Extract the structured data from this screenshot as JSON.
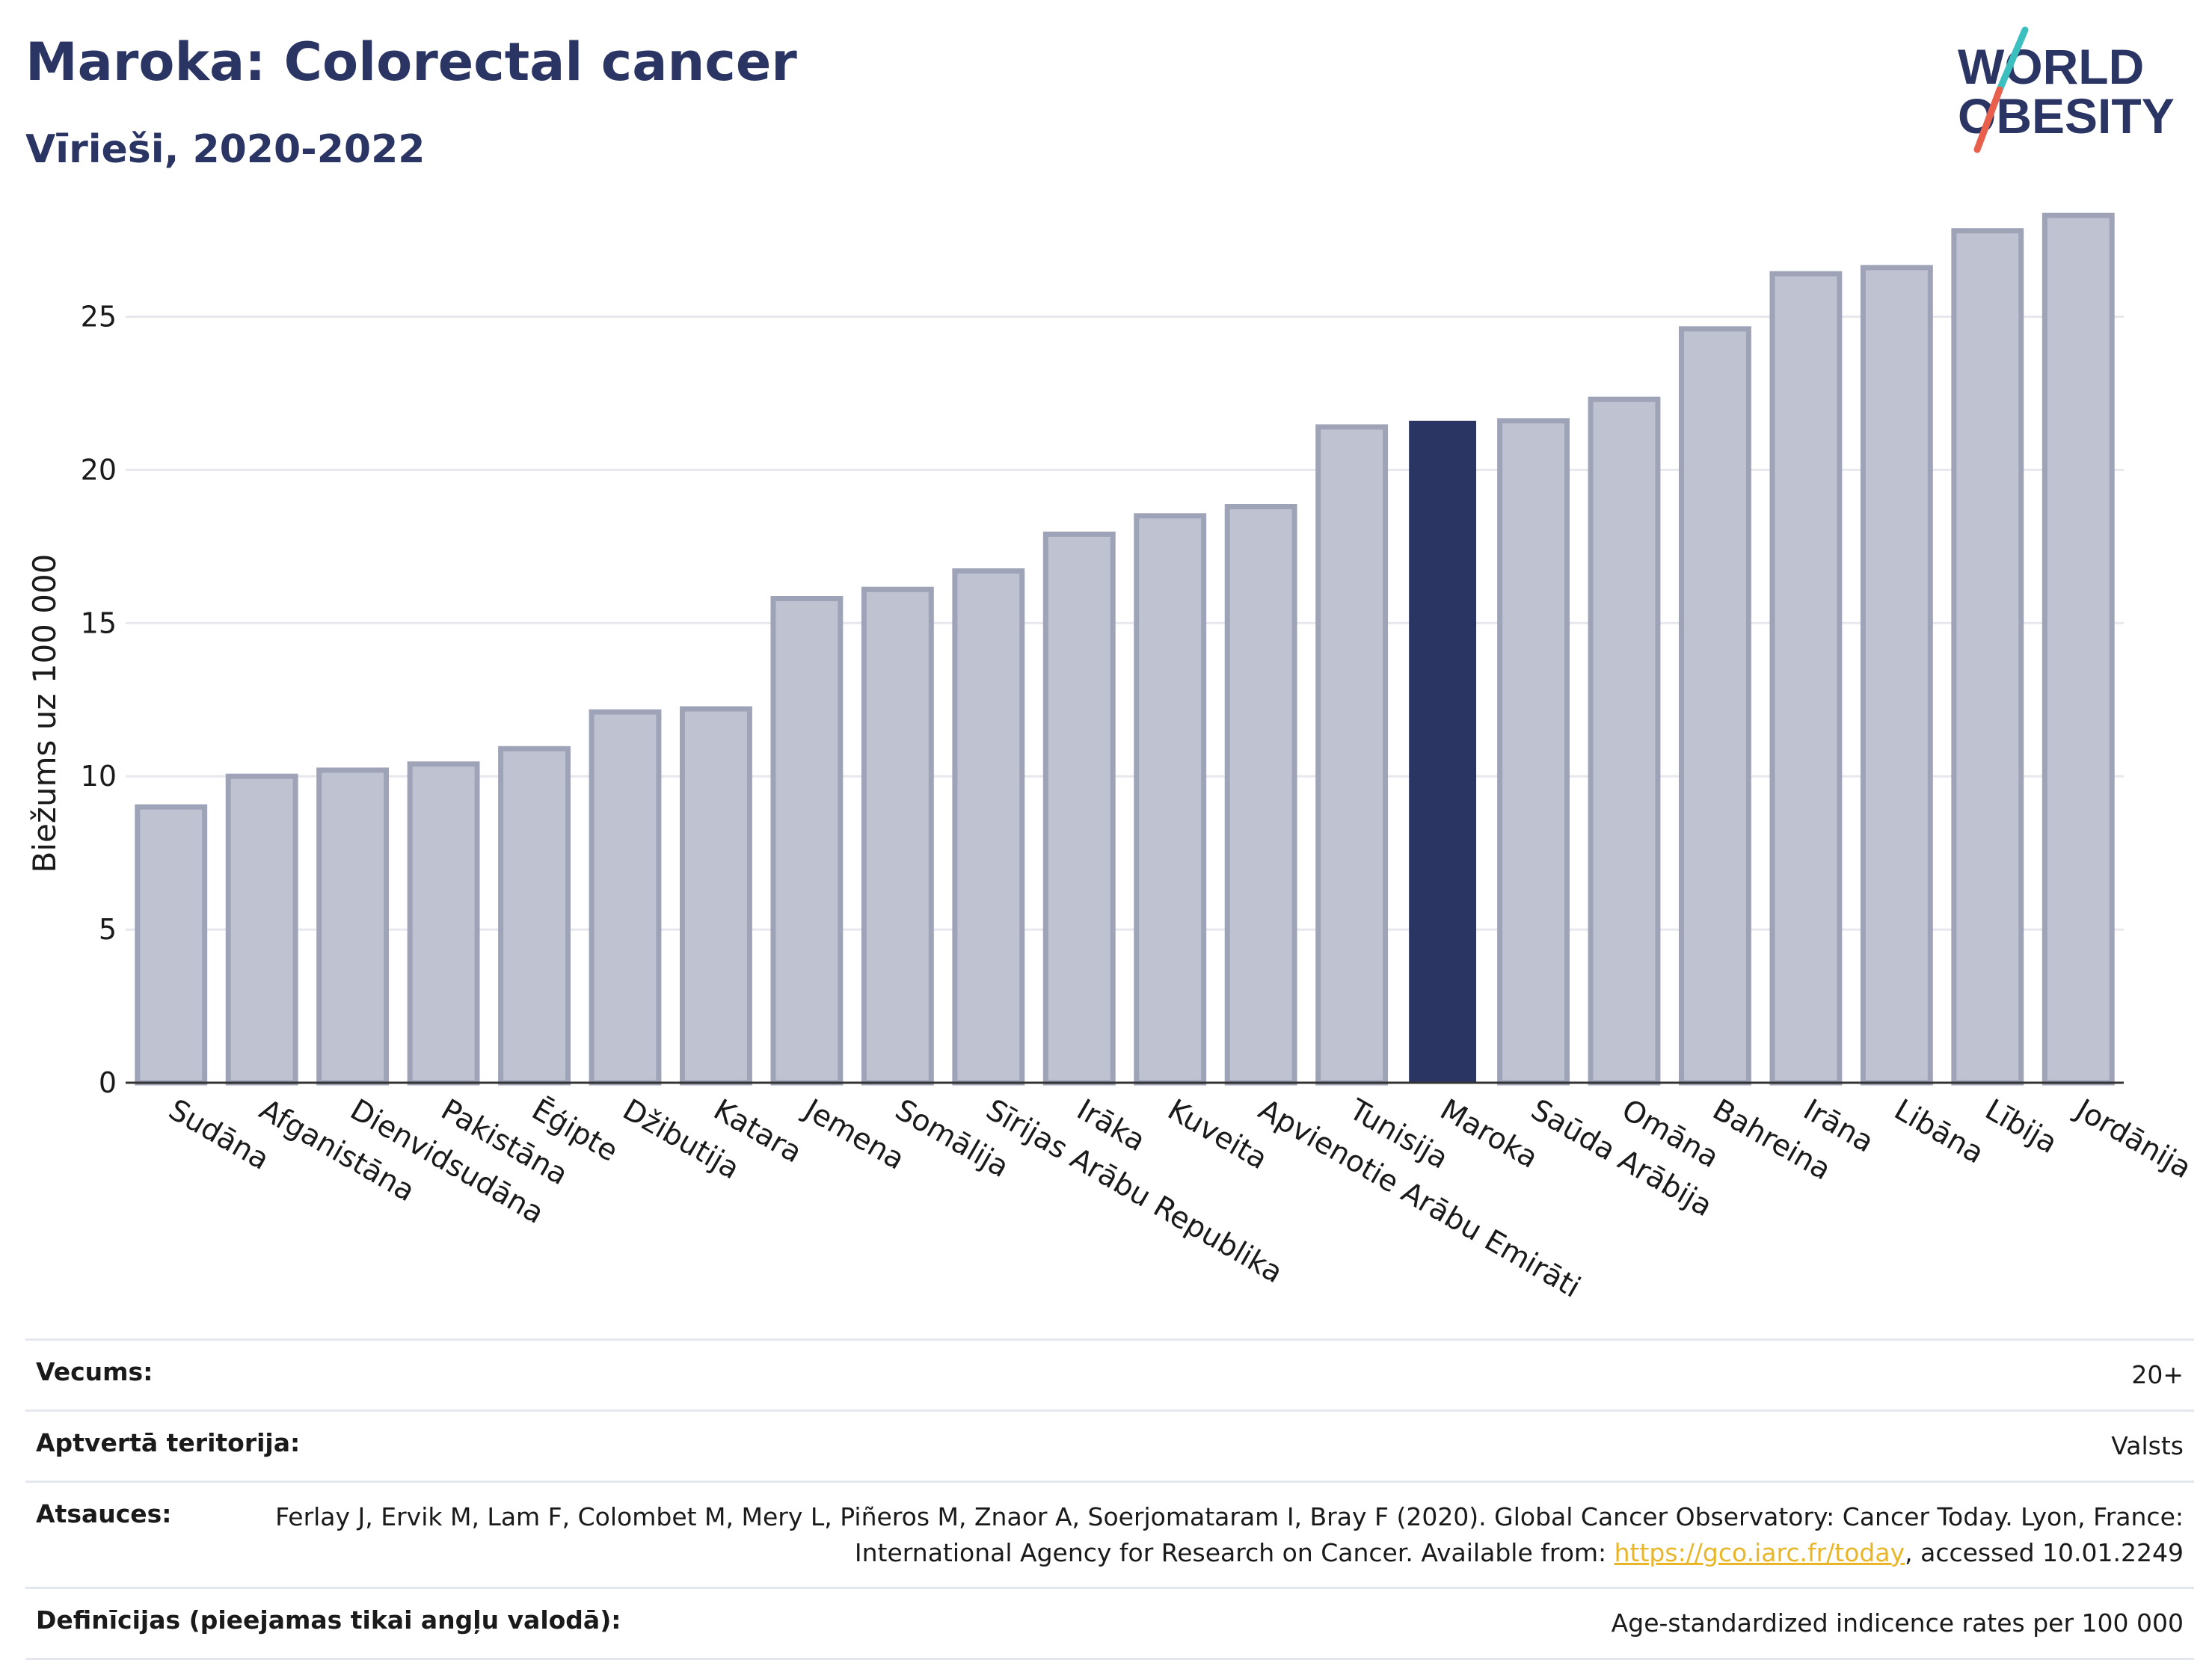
{
  "header": {
    "title": "Maroka: Colorectal cancer",
    "subtitle": "Vīrieši, 2020-2022"
  },
  "logo": {
    "line1": "WORLD",
    "line2": "OBESITY",
    "colors": {
      "text": "#2b3564",
      "slash_teal": "#3bbfbf",
      "slash_red": "#e8604c"
    }
  },
  "colors": {
    "highlight_bar": "#2b3564",
    "normal_bar_fill": "#bfc2d0",
    "normal_bar_stroke": "#9ea3b8",
    "gridline": "#e6e8ee",
    "axis": "#333333"
  },
  "chart_data": {
    "type": "bar",
    "title": "Maroka: Colorectal cancer",
    "subtitle": "Vīrieši, 2020-2022",
    "xlabel": "",
    "ylabel": "Biežums uz 100 000",
    "ylim": [
      0,
      28.5
    ],
    "yticks": [
      0,
      5,
      10,
      15,
      20,
      25
    ],
    "grid": true,
    "highlight": "Maroka",
    "categories": [
      "Sudāna",
      "Afganistāna",
      "Dienvidsudāna",
      "Pakistāna",
      "Ēģipte",
      "Džibutija",
      "Katara",
      "Jemena",
      "Somālija",
      "Sīrijas Arābu Republika",
      "Irāka",
      "Kuveita",
      "Apvienotie Arābu Emirāti",
      "Tunisija",
      "Maroka",
      "Saūda Arābija",
      "Omāna",
      "Bahreina",
      "Irāna",
      "Libāna",
      "Lībija",
      "Jordānija"
    ],
    "values": [
      9.0,
      10.0,
      10.2,
      10.4,
      10.9,
      12.1,
      12.2,
      15.8,
      16.1,
      16.7,
      17.9,
      18.5,
      18.8,
      21.4,
      21.6,
      21.6,
      22.3,
      24.6,
      26.4,
      26.6,
      27.8,
      28.3
    ]
  },
  "info": {
    "age_label": "Vecums:",
    "age_value": "20+",
    "coverage_label": "Aptvertā teritorija:",
    "coverage_value": "Valsts",
    "refs_label": "Atsauces:",
    "refs_text_1": "Ferlay J, Ervik M, Lam F, Colombet M, Mery L, Piñeros M, Znaor A, Soerjomataram I, Bray F (2020). Global Cancer Observatory: Cancer Today. Lyon, France: International Agency for Research on Cancer. Available from: ",
    "refs_link": "https://gco.iarc.fr/today",
    "refs_text_2": ", accessed 10.01.2249",
    "defs_label": "Definīcijas (pieejamas tikai angļu valodā):",
    "defs_value": "Age-standardized indicence rates per 100 000"
  }
}
